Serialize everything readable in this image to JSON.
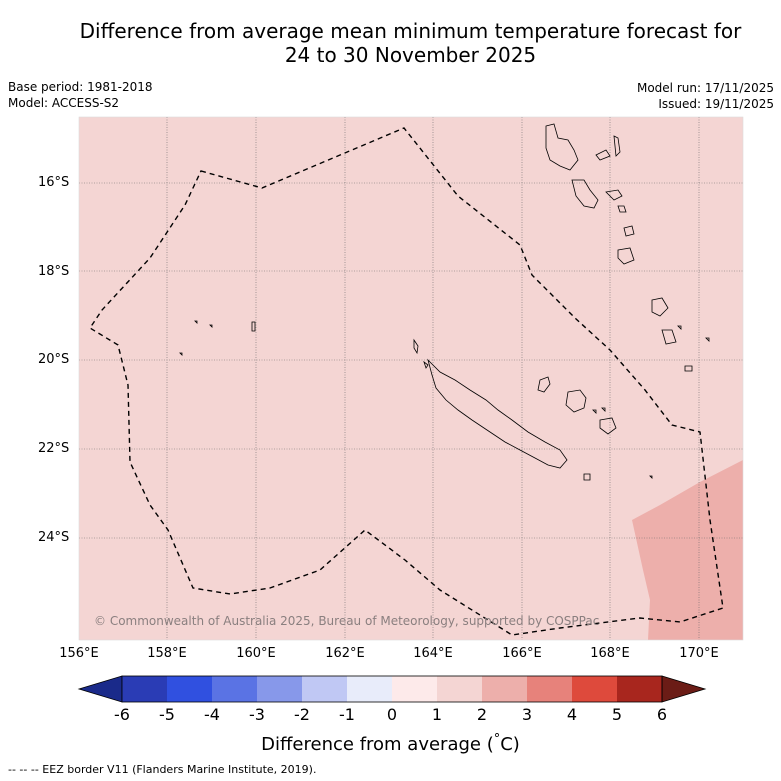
{
  "title": {
    "line1": "Difference from average mean minimum temperature forecast for",
    "line2": "24 to 30 November 2025"
  },
  "meta": {
    "base_period": "Base period: 1981-2018",
    "model": "Model: ACCESS-S2",
    "model_run": "Model run: 17/11/2025",
    "issued": "Issued: 19/11/2025"
  },
  "map": {
    "lat_labels": [
      "16°S",
      "18°S",
      "20°S",
      "22°S",
      "24°S"
    ],
    "lon_labels": [
      "156°E",
      "158°E",
      "160°E",
      "162°E",
      "164°E",
      "166°E",
      "168°E",
      "170°E"
    ],
    "background_color": "#f4d5d3",
    "warm_region_color": "#edafab",
    "copyright": "© Commonwealth of Australia 2025, Bureau of Meteorology, supported by COSPPac"
  },
  "colorbar": {
    "ticks": [
      "-6",
      "-5",
      "-4",
      "-3",
      "-2",
      "-1",
      "0",
      "1",
      "2",
      "3",
      "4",
      "5",
      "6"
    ],
    "colors": [
      "#1a2a8a",
      "#2a3cb5",
      "#3050e0",
      "#5a73e4",
      "#8798ea",
      "#c0c8f4",
      "#e8ecfa",
      "#fdeaea",
      "#f4d5d3",
      "#edafab",
      "#e7827b",
      "#de4a3c",
      "#a8261e",
      "#6b1c16"
    ],
    "label": "Difference from average (",
    "label_degree": "°",
    "label_unit": "C)"
  },
  "footnote": "-- -- -- EEZ border V11 (Flanders Marine Institute, 2019)."
}
